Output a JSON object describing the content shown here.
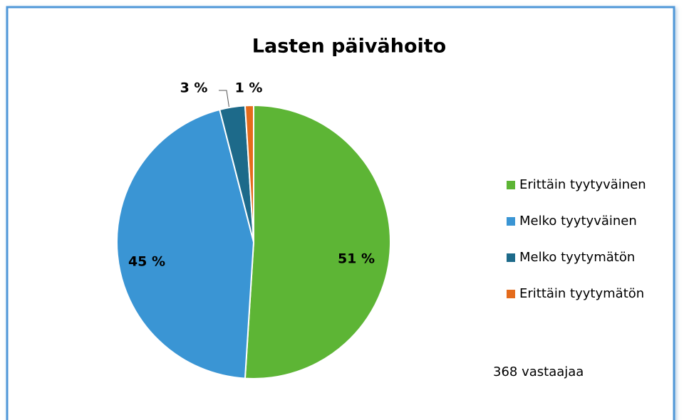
{
  "chart_data": {
    "type": "pie",
    "title": "Lasten päivähoito",
    "categories": [
      "Erittäin tyytyväinen",
      "Melko tyytyväinen",
      "Melko tyytymätön",
      "Erittäin tyytymätön"
    ],
    "values": [
      51,
      45,
      3,
      1
    ],
    "value_labels": [
      "51 %",
      "45 %",
      "3 %",
      "1 %"
    ],
    "colors": [
      "#5db535",
      "#3a95d4",
      "#1d6a8a",
      "#e46b1c"
    ],
    "legend": "right",
    "annotations": [
      "368 vastaajaa"
    ]
  }
}
